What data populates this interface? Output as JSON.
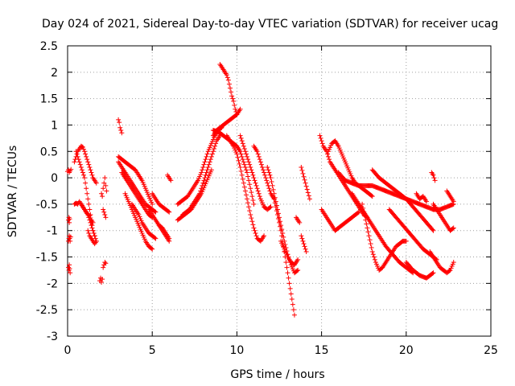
{
  "chart_data": {
    "type": "scatter",
    "title": "Day 024 of 2021, Sidereal Day-to-day VTEC variation (SDTVAR) for receiver ucag",
    "xlabel": "GPS time / hours",
    "ylabel": "SDTVAR / TECUs",
    "xlim": [
      0,
      25
    ],
    "ylim": [
      -3,
      2.5
    ],
    "xticks": [
      0,
      5,
      10,
      15,
      20,
      25
    ],
    "xtick_labels": [
      "0",
      "5",
      "10",
      "15",
      "20",
      "25"
    ],
    "yticks": [
      2.5,
      2,
      1.5,
      1,
      0.5,
      0,
      -0.5,
      -1,
      -1.5,
      -2,
      -2.5,
      -3
    ],
    "ytick_labels": [
      "2.5",
      "2",
      "1.5",
      "1",
      "0.5",
      "0",
      "-0.5",
      "-1",
      "-1.5",
      "-2",
      "-2.5",
      "-3"
    ],
    "grid": true,
    "marker": "+",
    "color": "#ff0000",
    "series": [
      {
        "name": "seg-a",
        "x": [
          0.0,
          0.05,
          0.1,
          0.15,
          0.2
        ],
        "y": [
          0.12,
          0.15,
          0.1,
          0.13,
          0.16
        ]
      },
      {
        "name": "seg-b",
        "x": [
          0.05,
          0.08,
          0.1,
          0.12
        ],
        "y": [
          -0.8,
          -0.75,
          -0.85,
          -0.78
        ]
      },
      {
        "name": "seg-c",
        "x": [
          0.05,
          0.08,
          0.1,
          0.12,
          0.15,
          0.18
        ],
        "y": [
          -1.2,
          -1.15,
          -1.1,
          -1.15,
          -1.2,
          -1.12
        ]
      },
      {
        "name": "seg-d",
        "x": [
          0.05,
          0.08,
          0.1,
          0.12,
          0.15
        ],
        "y": [
          -1.7,
          -1.75,
          -1.65,
          -1.72,
          -1.8
        ]
      },
      {
        "name": "seg-e",
        "x": [
          0.4,
          0.5,
          0.6,
          0.7,
          0.8,
          0.9,
          1.0,
          1.1,
          1.2,
          1.3,
          1.4,
          1.5,
          1.6,
          1.7
        ],
        "y": [
          0.3,
          0.4,
          0.5,
          0.55,
          0.6,
          0.58,
          0.5,
          0.4,
          0.3,
          0.2,
          0.1,
          0.0,
          -0.05,
          -0.1
        ]
      },
      {
        "name": "seg-f",
        "x": [
          0.4,
          0.5,
          0.6,
          0.7,
          0.8,
          0.9,
          1.0,
          1.1,
          1.2,
          1.3,
          1.4,
          1.5,
          1.6
        ],
        "y": [
          -0.5,
          -0.48,
          -0.5,
          -0.45,
          -0.5,
          -0.55,
          -0.6,
          -0.65,
          -0.7,
          -0.8,
          -0.9,
          -1.0,
          -1.1
        ]
      },
      {
        "name": "seg-g",
        "x": [
          0.5,
          0.6,
          0.7,
          0.8,
          0.9,
          1.0,
          1.1,
          1.2,
          1.3,
          1.4,
          1.5,
          1.6,
          1.7
        ],
        "y": [
          0.5,
          0.4,
          0.3,
          0.2,
          0.1,
          0.0,
          -0.2,
          -0.4,
          -0.6,
          -0.8,
          -1.0,
          -1.1,
          -1.2
        ]
      },
      {
        "name": "seg-h",
        "x": [
          0.8,
          0.9,
          1.0,
          1.1,
          1.2,
          1.3,
          1.4,
          1.5
        ],
        "y": [
          -0.5,
          -0.55,
          -0.6,
          -0.65,
          -0.7,
          -0.72,
          -0.8,
          -0.85
        ]
      },
      {
        "name": "seg-i",
        "x": [
          1.2,
          1.3,
          1.4,
          1.5,
          1.6,
          1.7
        ],
        "y": [
          -1.0,
          -1.1,
          -1.15,
          -1.2,
          -1.25,
          -1.2
        ]
      },
      {
        "name": "seg-j",
        "x": [
          1.9,
          1.95,
          2.0,
          2.05
        ],
        "y": [
          -1.95,
          -1.9,
          -1.98,
          -1.92
        ]
      },
      {
        "name": "seg-k",
        "x": [
          2.1,
          2.15,
          2.2,
          2.25
        ],
        "y": [
          -1.7,
          -1.65,
          -1.6,
          -1.62
        ]
      },
      {
        "name": "seg-l",
        "x": [
          2.0,
          2.05,
          2.1,
          2.15,
          2.2,
          2.25,
          2.3
        ],
        "y": [
          -0.3,
          -0.35,
          -0.2,
          -0.1,
          0.0,
          -0.15,
          -0.25
        ]
      },
      {
        "name": "seg-m",
        "x": [
          2.1,
          2.15,
          2.2,
          2.25
        ],
        "y": [
          -0.6,
          -0.65,
          -0.7,
          -0.75
        ]
      },
      {
        "name": "seg-n",
        "x": [
          3.0,
          3.05,
          3.1,
          3.15,
          3.2
        ],
        "y": [
          1.1,
          1.05,
          0.95,
          0.9,
          0.85
        ]
      },
      {
        "name": "seg-o",
        "x": [
          3.0,
          3.2,
          3.4,
          3.6,
          3.8,
          4.0,
          4.2,
          4.4,
          4.6,
          4.8,
          5.0
        ],
        "y": [
          0.4,
          0.35,
          0.3,
          0.25,
          0.2,
          0.15,
          0.05,
          -0.05,
          -0.2,
          -0.35,
          -0.5
        ]
      },
      {
        "name": "seg-p",
        "x": [
          3.0,
          3.2,
          3.4,
          3.6,
          3.8,
          4.0,
          4.2,
          4.4,
          4.6,
          4.8,
          5.0,
          5.2
        ],
        "y": [
          0.3,
          0.2,
          0.1,
          0.0,
          -0.1,
          -0.2,
          -0.3,
          -0.4,
          -0.5,
          -0.55,
          -0.6,
          -0.65
        ]
      },
      {
        "name": "seg-q",
        "x": [
          3.2,
          3.4,
          3.6,
          3.8,
          4.0,
          4.2,
          4.4,
          4.6,
          4.8,
          5.0
        ],
        "y": [
          0.1,
          0.0,
          -0.1,
          -0.2,
          -0.3,
          -0.4,
          -0.5,
          -0.6,
          -0.7,
          -0.75
        ]
      },
      {
        "name": "seg-r",
        "x": [
          3.4,
          3.6,
          3.8,
          4.0,
          4.2,
          4.4,
          4.6,
          4.8,
          5.0
        ],
        "y": [
          -0.3,
          -0.45,
          -0.6,
          -0.75,
          -0.9,
          -1.05,
          -1.2,
          -1.3,
          -1.35
        ]
      },
      {
        "name": "seg-s",
        "x": [
          3.8,
          4.0,
          4.2,
          4.4,
          4.6,
          4.8,
          5.0,
          5.2
        ],
        "y": [
          -0.5,
          -0.6,
          -0.7,
          -0.85,
          -0.95,
          -1.05,
          -1.1,
          -1.15
        ]
      },
      {
        "name": "seg-t",
        "x": [
          4.8,
          5.0,
          5.2,
          5.4,
          5.6,
          5.8,
          6.0
        ],
        "y": [
          -0.6,
          -0.7,
          -0.8,
          -0.9,
          -1.0,
          -1.1,
          -1.2
        ]
      },
      {
        "name": "seg-u",
        "x": [
          5.0,
          5.2,
          5.4,
          5.6,
          5.8,
          6.0
        ],
        "y": [
          -0.3,
          -0.4,
          -0.5,
          -0.55,
          -0.6,
          -0.65
        ]
      },
      {
        "name": "seg-v",
        "x": [
          5.4,
          5.6,
          5.8,
          6.0
        ],
        "y": [
          -0.9,
          -0.95,
          -1.05,
          -1.15
        ]
      },
      {
        "name": "seg-w",
        "x": [
          5.9,
          6.0,
          6.1
        ],
        "y": [
          0.05,
          0.0,
          -0.05
        ]
      },
      {
        "name": "seg-x",
        "x": [
          6.5,
          6.7,
          6.9,
          7.1,
          7.3,
          7.5,
          7.7,
          7.9,
          8.1,
          8.3,
          8.5,
          8.7,
          8.9,
          9.1
        ],
        "y": [
          -0.5,
          -0.45,
          -0.4,
          -0.35,
          -0.25,
          -0.15,
          -0.05,
          0.1,
          0.3,
          0.5,
          0.65,
          0.8,
          0.9,
          0.95
        ]
      },
      {
        "name": "seg-y",
        "x": [
          6.5,
          6.7,
          6.9,
          7.1,
          7.3,
          7.5,
          7.7,
          7.9,
          8.1,
          8.3,
          8.5
        ],
        "y": [
          -0.8,
          -0.75,
          -0.7,
          -0.65,
          -0.6,
          -0.5,
          -0.4,
          -0.3,
          -0.15,
          0.0,
          0.15
        ]
      },
      {
        "name": "seg-z",
        "x": [
          6.8,
          7.0,
          7.2,
          7.4,
          7.6,
          7.8,
          8.0,
          8.2,
          8.4,
          8.6,
          8.8,
          9.0
        ],
        "y": [
          -0.7,
          -0.65,
          -0.6,
          -0.5,
          -0.4,
          -0.3,
          -0.1,
          0.1,
          0.3,
          0.5,
          0.7,
          0.8
        ]
      },
      {
        "name": "seg-aa",
        "x": [
          8.6,
          8.8,
          9.0,
          9.2,
          9.4,
          9.6,
          9.8,
          10.0,
          10.2
        ],
        "y": [
          0.8,
          0.9,
          0.95,
          1.0,
          1.05,
          1.1,
          1.15,
          1.2,
          1.3
        ]
      },
      {
        "name": "seg-ab",
        "x": [
          9.0,
          9.1,
          9.2,
          9.3,
          9.4,
          9.5,
          9.6,
          9.7,
          9.8,
          9.9,
          10.0
        ],
        "y": [
          2.15,
          2.1,
          2.05,
          2.0,
          1.95,
          1.85,
          1.7,
          1.55,
          1.45,
          1.3,
          1.2
        ]
      },
      {
        "name": "seg-ac",
        "x": [
          8.6,
          8.8,
          9.0,
          9.2,
          9.4,
          9.6,
          9.8,
          10.0,
          10.2,
          10.4,
          10.6,
          10.8,
          11.0
        ],
        "y": [
          0.9,
          0.88,
          0.85,
          0.8,
          0.75,
          0.7,
          0.65,
          0.6,
          0.5,
          0.3,
          0.1,
          -0.2,
          -0.5
        ]
      },
      {
        "name": "seg-ad",
        "x": [
          9.4,
          9.6,
          9.8,
          10.0,
          10.2,
          10.4,
          10.6,
          10.8,
          11.0,
          11.2,
          11.4,
          11.6
        ],
        "y": [
          0.8,
          0.7,
          0.6,
          0.45,
          0.2,
          -0.1,
          -0.4,
          -0.7,
          -0.95,
          -1.15,
          -1.2,
          -1.1
        ]
      },
      {
        "name": "seg-ae",
        "x": [
          10.2,
          10.4,
          10.6,
          10.8,
          11.0,
          11.2,
          11.4,
          11.6,
          11.8,
          12.0
        ],
        "y": [
          0.8,
          0.6,
          0.4,
          0.2,
          0.0,
          -0.2,
          -0.4,
          -0.55,
          -0.6,
          -0.55
        ]
      },
      {
        "name": "seg-af",
        "x": [
          11.0,
          11.2,
          11.4,
          11.6,
          11.8,
          12.0,
          12.2
        ],
        "y": [
          0.6,
          0.5,
          0.3,
          0.1,
          -0.1,
          -0.3,
          -0.4
        ]
      },
      {
        "name": "seg-ag",
        "x": [
          11.8,
          12.0,
          12.2,
          12.4,
          12.6,
          12.8,
          13.0,
          13.2,
          13.4,
          13.6
        ],
        "y": [
          0.2,
          0.0,
          -0.3,
          -0.6,
          -0.9,
          -1.2,
          -1.45,
          -1.65,
          -1.8,
          -1.75
        ]
      },
      {
        "name": "seg-ah",
        "x": [
          12.2,
          12.4,
          12.6,
          12.8,
          13.0,
          13.2,
          13.4
        ],
        "y": [
          -0.4,
          -0.7,
          -1.0,
          -1.4,
          -1.8,
          -2.2,
          -2.6
        ]
      },
      {
        "name": "seg-ai",
        "x": [
          12.6,
          12.8,
          13.0,
          13.2,
          13.4,
          13.6
        ],
        "y": [
          -1.2,
          -1.35,
          -1.5,
          -1.6,
          -1.65,
          -1.55
        ]
      },
      {
        "name": "seg-aj",
        "x": [
          13.5,
          13.6,
          13.7
        ],
        "y": [
          -0.75,
          -0.8,
          -0.85
        ]
      },
      {
        "name": "seg-ak",
        "x": [
          13.8,
          14.3
        ],
        "y": [
          0.2,
          -0.4
        ]
      },
      {
        "name": "seg-al",
        "x": [
          13.8,
          14.1
        ],
        "y": [
          -1.1,
          -1.4
        ]
      },
      {
        "name": "seg-am",
        "x": [
          14.9,
          15.1,
          15.3,
          15.5,
          15.7,
          15.9,
          16.1,
          16.3,
          16.5,
          16.7,
          16.9,
          17.1,
          17.3,
          17.5,
          17.7
        ],
        "y": [
          0.8,
          0.6,
          0.5,
          0.3,
          0.2,
          0.1,
          0.0,
          -0.1,
          -0.2,
          -0.3,
          -0.4,
          -0.5,
          -0.6,
          -0.7,
          -0.75
        ]
      },
      {
        "name": "seg-an",
        "x": [
          15.0,
          15.2,
          15.4,
          15.6,
          15.8,
          16.0,
          16.2,
          16.4,
          16.6,
          16.8,
          17.0,
          17.2
        ],
        "y": [
          -0.6,
          -0.7,
          -0.8,
          -0.9,
          -1.0,
          -0.95,
          -0.9,
          -0.85,
          -0.8,
          -0.75,
          -0.7,
          -0.65
        ]
      },
      {
        "name": "seg-ao",
        "x": [
          15.4,
          15.6,
          15.8,
          16.0,
          16.2,
          16.4,
          16.6,
          16.8,
          17.0,
          17.2,
          17.4,
          17.6,
          17.8,
          18.0
        ],
        "y": [
          0.5,
          0.65,
          0.7,
          0.6,
          0.45,
          0.3,
          0.15,
          0.0,
          -0.1,
          -0.15,
          -0.2,
          -0.25,
          -0.3,
          -0.35
        ]
      },
      {
        "name": "seg-ap",
        "x": [
          16.0,
          16.4,
          16.8,
          17.2,
          17.6,
          18.0,
          18.4,
          18.8,
          19.2,
          19.6,
          20.0,
          20.4,
          20.8,
          21.2,
          21.6,
          22.0,
          22.4,
          22.8
        ],
        "y": [
          0.1,
          -0.05,
          -0.1,
          -0.15,
          -0.15,
          -0.15,
          -0.2,
          -0.25,
          -0.3,
          -0.35,
          -0.4,
          -0.45,
          -0.5,
          -0.55,
          -0.6,
          -0.6,
          -0.55,
          -0.5
        ]
      },
      {
        "name": "seg-aq",
        "x": [
          16.8,
          17.2,
          17.6,
          18.0,
          18.4,
          18.8,
          19.2,
          19.6,
          20.0,
          20.4
        ],
        "y": [
          -0.3,
          -0.5,
          -0.7,
          -0.9,
          -1.1,
          -1.3,
          -1.45,
          -1.6,
          -1.7,
          -1.8
        ]
      },
      {
        "name": "seg-ar",
        "x": [
          17.4,
          17.6,
          17.8,
          18.0,
          18.2,
          18.4,
          18.6,
          18.8,
          19.0,
          19.2,
          19.4,
          19.6,
          19.8,
          20.0
        ],
        "y": [
          -0.5,
          -0.8,
          -1.1,
          -1.4,
          -1.6,
          -1.75,
          -1.7,
          -1.6,
          -1.5,
          -1.4,
          -1.3,
          -1.25,
          -1.2,
          -1.2
        ]
      },
      {
        "name": "seg-as",
        "x": [
          18.0,
          18.4,
          18.8,
          19.2,
          19.6,
          20.0,
          20.4,
          20.8,
          21.2,
          21.6
        ],
        "y": [
          0.15,
          0.0,
          -0.1,
          -0.2,
          -0.3,
          -0.4,
          -0.55,
          -0.7,
          -0.85,
          -1.0
        ]
      },
      {
        "name": "seg-at",
        "x": [
          19.0,
          19.4,
          19.8,
          20.2,
          20.6,
          21.0,
          21.4,
          21.8
        ],
        "y": [
          -0.6,
          -0.75,
          -0.9,
          -1.05,
          -1.2,
          -1.35,
          -1.45,
          -1.55
        ]
      },
      {
        "name": "seg-au",
        "x": [
          20.0,
          20.4,
          20.8,
          21.2,
          21.6
        ],
        "y": [
          -1.6,
          -1.75,
          -1.85,
          -1.9,
          -1.8
        ]
      },
      {
        "name": "seg-av",
        "x": [
          20.6,
          20.8,
          21.0,
          21.2
        ],
        "y": [
          -0.3,
          -0.4,
          -0.35,
          -0.45
        ]
      },
      {
        "name": "seg-aw",
        "x": [
          21.4,
          21.6,
          21.8,
          22.0,
          22.2,
          22.4,
          22.6,
          22.8
        ],
        "y": [
          -1.4,
          -1.5,
          -1.6,
          -1.7,
          -1.75,
          -1.8,
          -1.75,
          -1.6
        ]
      },
      {
        "name": "seg-ax",
        "x": [
          21.6,
          21.8,
          22.0,
          22.2,
          22.4,
          22.6,
          22.8
        ],
        "y": [
          -0.5,
          -0.6,
          -0.7,
          -0.8,
          -0.9,
          -1.0,
          -0.95
        ]
      },
      {
        "name": "seg-ay",
        "x": [
          21.5,
          21.6,
          21.7
        ],
        "y": [
          0.1,
          0.05,
          -0.05
        ]
      },
      {
        "name": "seg-az",
        "x": [
          22.4,
          22.6,
          22.8
        ],
        "y": [
          -0.25,
          -0.35,
          -0.45
        ]
      }
    ]
  }
}
